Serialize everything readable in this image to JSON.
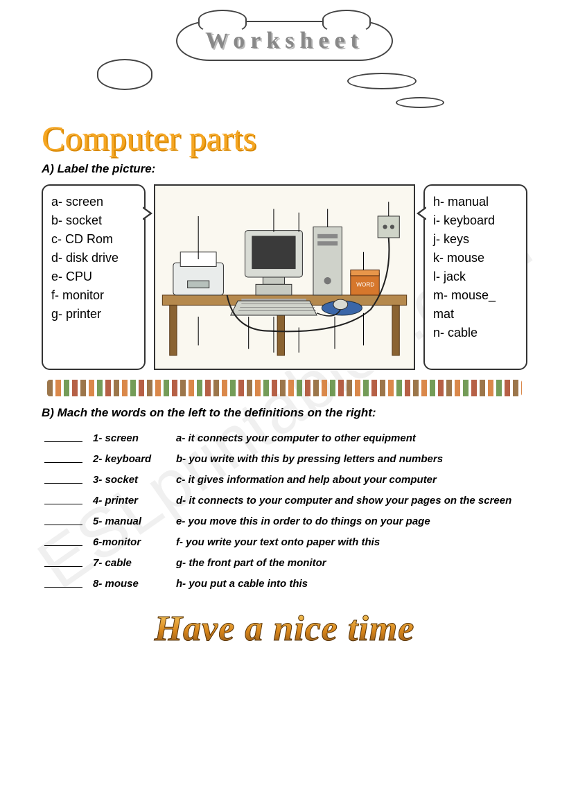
{
  "header": {
    "worksheet_label": "Worksheet"
  },
  "title": "Computer parts",
  "section_a": {
    "instruction": "A) Label the picture:",
    "left_labels": [
      "a- screen",
      "b- socket",
      "c- CD Rom",
      "d- disk drive",
      "e- CPU",
      "f- monitor",
      "g- printer"
    ],
    "right_labels": [
      "h- manual",
      "i- keyboard",
      "j- keys",
      "k- mouse",
      "l- jack",
      "m- mouse_ mat",
      "n- cable"
    ]
  },
  "section_b": {
    "instruction": "B) Mach the words on the left to the definitions on the right:",
    "rows": [
      {
        "num": "1- screen",
        "def": "a- it connects your computer to other equipment"
      },
      {
        "num": "2- keyboard",
        "def": "b- you write with this by pressing letters and numbers"
      },
      {
        "num": "3- socket",
        "def": "c- it gives information and help about your computer"
      },
      {
        "num": "4- printer",
        "def": "d- it connects to your computer and show your pages on the screen"
      },
      {
        "num": "5- manual",
        "def": "e- you move this in order to do things on your page"
      },
      {
        "num": "6-monitor",
        "def": "f- you write your text onto paper with this"
      },
      {
        "num": "7- cable",
        "def": "g- the front part of the monitor"
      },
      {
        "num": "8- mouse",
        "def": "h- you put a cable into this"
      }
    ]
  },
  "footer": "Have a nice time",
  "watermark": "ESLprintables.com",
  "colors": {
    "title_color": "#f5a623",
    "footer_gradient_top": "#f9d56e",
    "footer_gradient_bottom": "#7a4a1a",
    "border": "#333333"
  }
}
